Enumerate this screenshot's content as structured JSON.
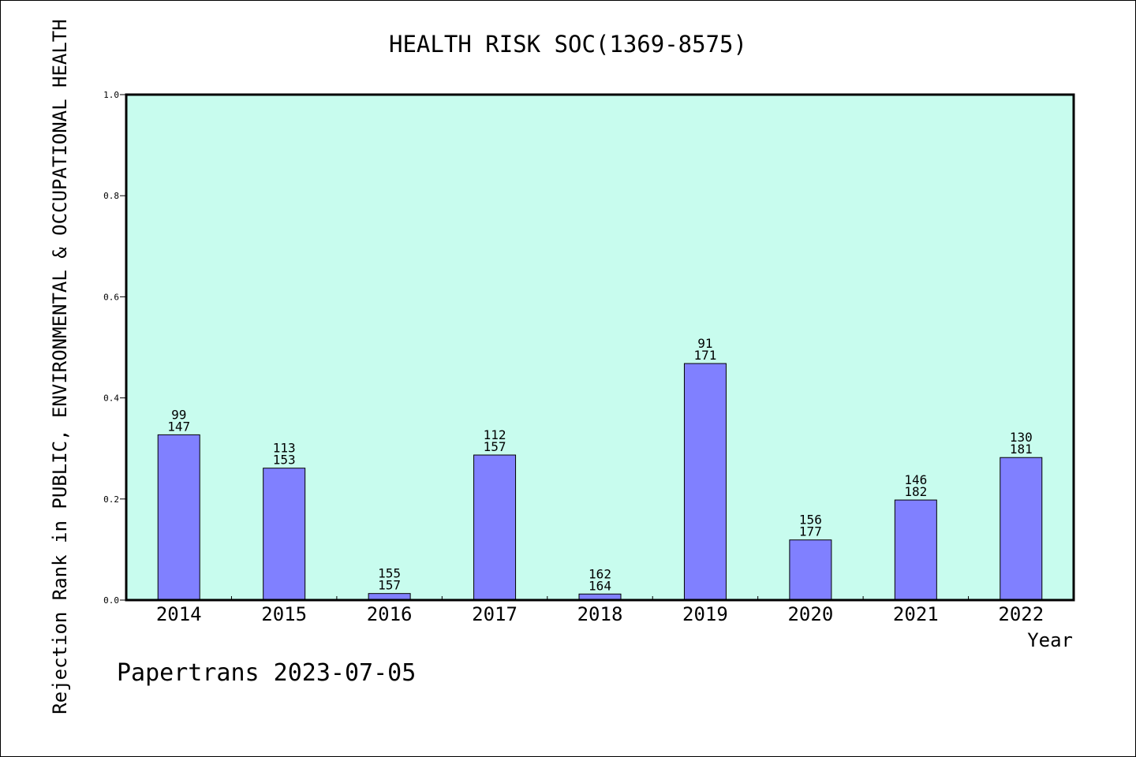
{
  "chart_data": {
    "type": "bar",
    "title": "HEALTH RISK SOC(1369-8575)",
    "xlabel": "Year",
    "ylabel": "Rejection Rank in PUBLIC, ENVIRONMENTAL & OCCUPATIONAL HEALTH",
    "categories": [
      "2014",
      "2015",
      "2016",
      "2017",
      "2018",
      "2019",
      "2020",
      "2021",
      "2022"
    ],
    "values": [
      0.327,
      0.261,
      0.013,
      0.287,
      0.012,
      0.468,
      0.119,
      0.198,
      0.282
    ],
    "label_top": [
      "99",
      "113",
      "155",
      "112",
      "162",
      "91",
      "156",
      "146",
      "130"
    ],
    "label_bottom": [
      "147",
      "153",
      "157",
      "157",
      "164",
      "171",
      "177",
      "182",
      "181"
    ],
    "ylim": [
      0,
      1.0
    ],
    "yticks": [
      "0.0",
      "0.2",
      "0.4",
      "0.6",
      "0.8",
      "1.0"
    ],
    "grid": false,
    "colors": {
      "plot_background": "#c8fcee",
      "bar": "#8080ff"
    }
  },
  "footer": {
    "credit": "Papertrans 2023-07-05"
  }
}
